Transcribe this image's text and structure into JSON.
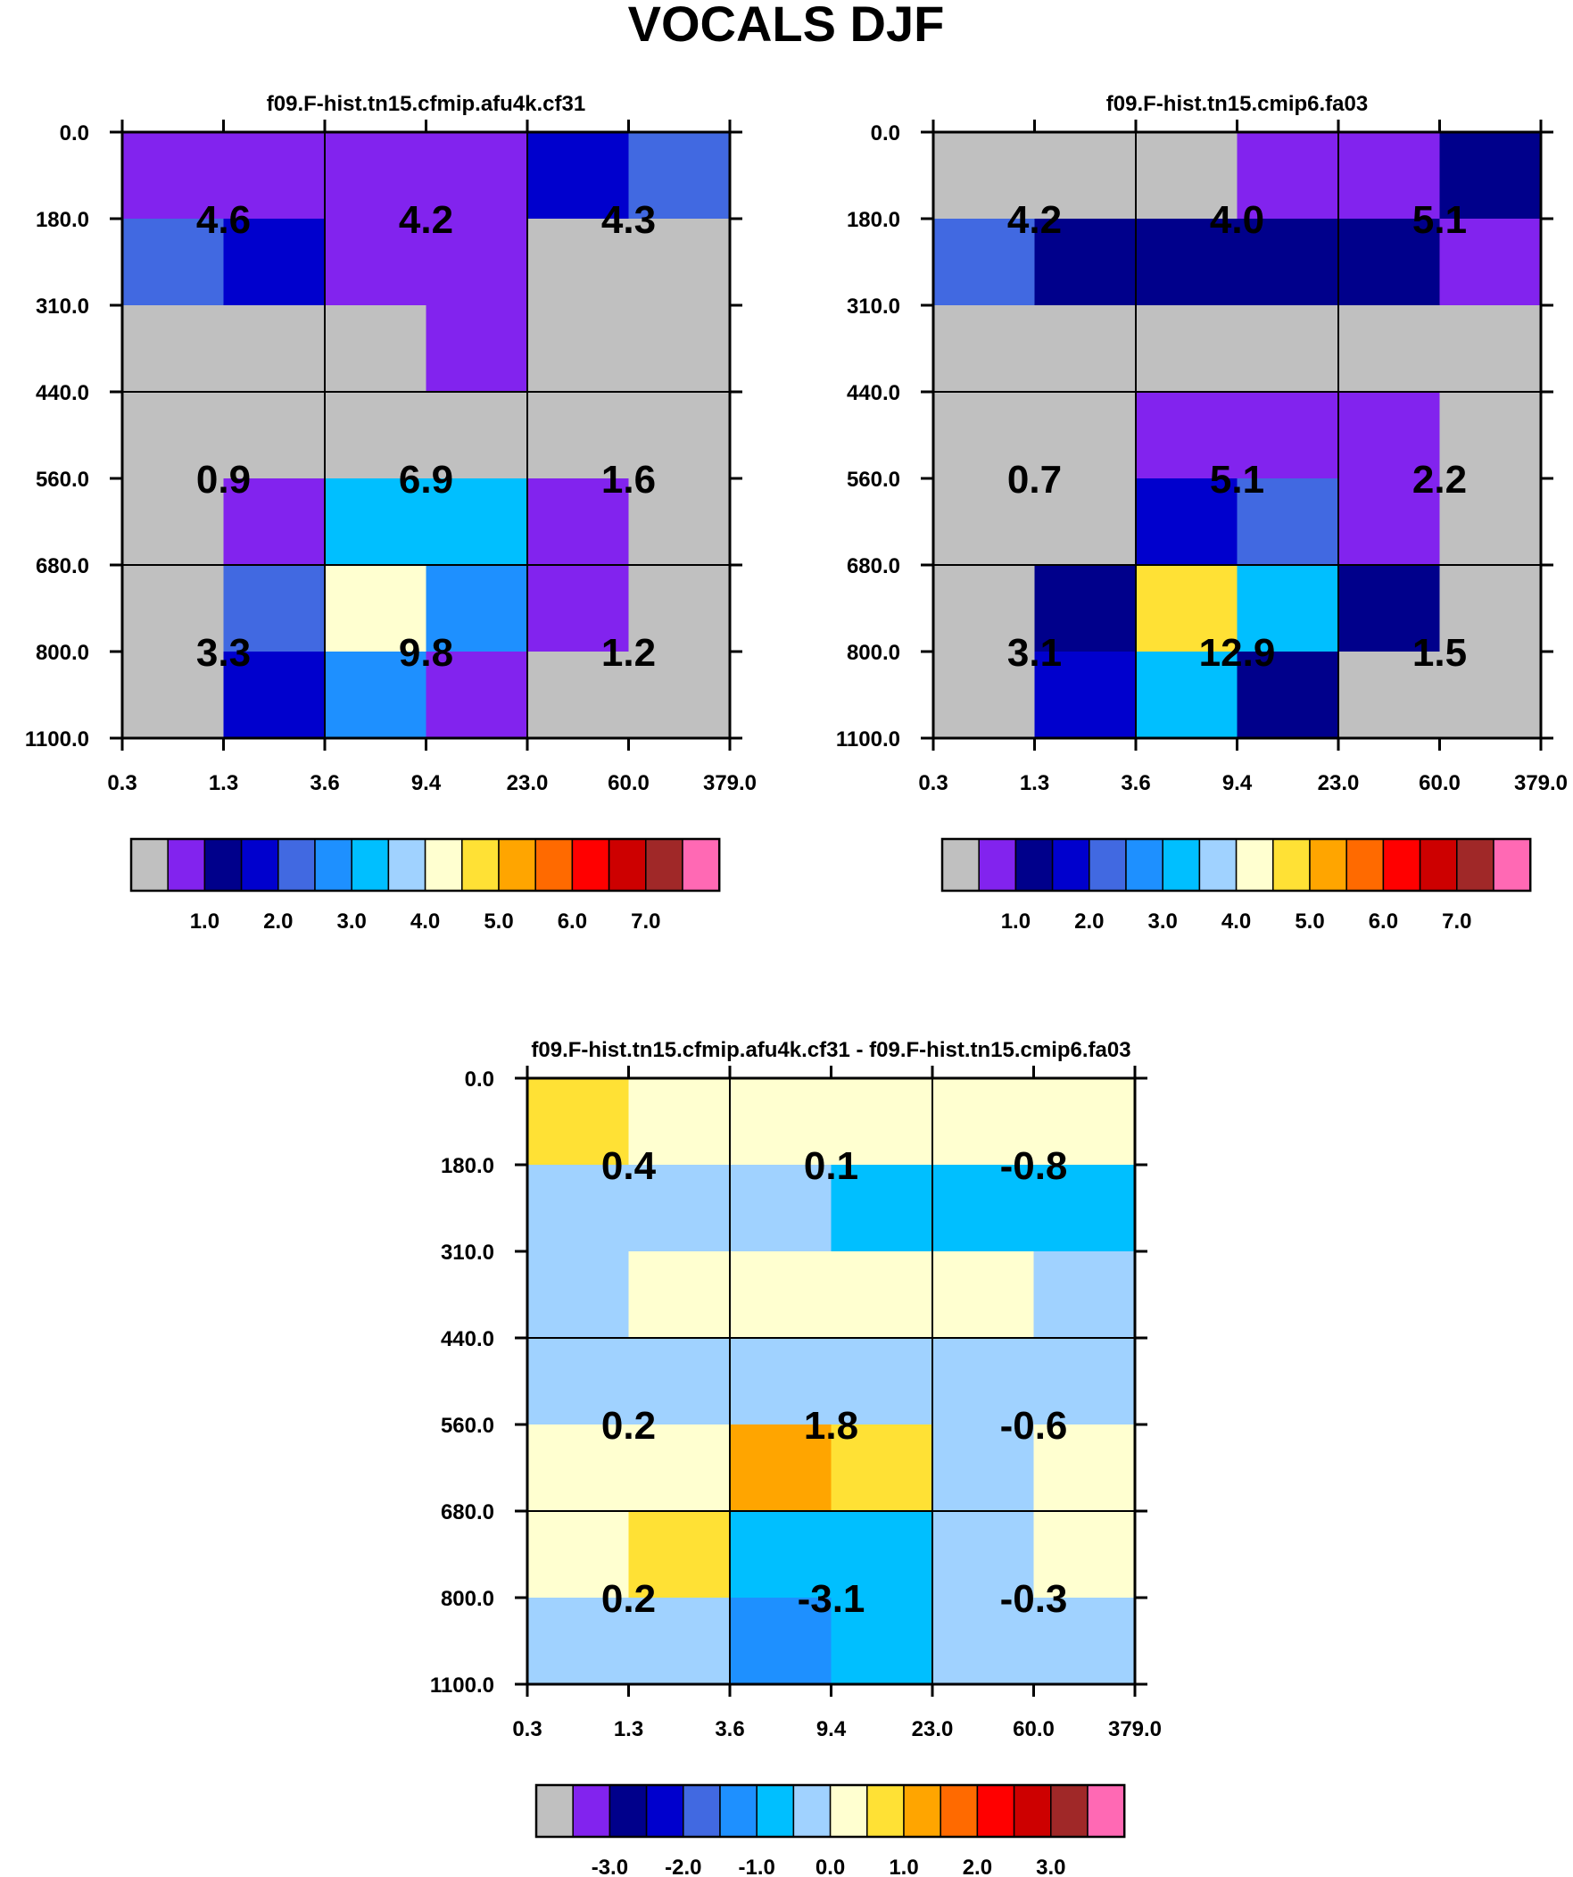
{
  "figure": {
    "title": "VOCALS DJF"
  },
  "chart_data": [
    {
      "id": "p1",
      "type": "heatmap",
      "title": "f09.F-hist.tn15.cfmip.afu4k.cf31",
      "x_ticks": [
        "0.3",
        "1.3",
        "3.6",
        "9.4",
        "23.0",
        "60.0",
        "379.0"
      ],
      "y_ticks": [
        "0.0",
        "180.0",
        "310.0",
        "440.0",
        "560.0",
        "680.0",
        "800.0",
        "1100.0"
      ],
      "cells": [
        [
          1,
          1,
          1,
          1,
          3,
          4
        ],
        [
          4,
          3,
          1,
          1,
          0,
          0
        ],
        [
          0,
          0,
          0,
          1,
          0,
          0
        ],
        [
          0,
          0,
          0,
          0,
          0,
          0
        ],
        [
          0,
          1,
          6,
          6,
          1,
          0
        ],
        [
          0,
          4,
          8,
          5,
          1,
          0
        ],
        [
          0,
          3,
          5,
          1,
          0,
          0
        ]
      ],
      "labels": [
        {
          "text": "4.6",
          "row": 1,
          "col": 1
        },
        {
          "text": "4.2",
          "row": 1,
          "col": 3
        },
        {
          "text": "4.3",
          "row": 1,
          "col": 5
        },
        {
          "text": "0.9",
          "row": 4,
          "col": 1
        },
        {
          "text": "6.9",
          "row": 4,
          "col": 3
        },
        {
          "text": "1.6",
          "row": 4,
          "col": 5
        },
        {
          "text": "3.3",
          "row": 6,
          "col": 1
        },
        {
          "text": "9.8",
          "row": 6,
          "col": 3
        },
        {
          "text": "1.2",
          "row": 6,
          "col": 5
        }
      ],
      "colorbar": {
        "colors": [
          "#c0c0c0",
          "#8223ee",
          "#00008b",
          "#0000cd",
          "#4169e1",
          "#1e90ff",
          "#00bfff",
          "#a0d2ff",
          "#ffffd0",
          "#ffe135",
          "#ffa500",
          "#ff6a00",
          "#ff0000",
          "#cd0000",
          "#a02828",
          "#ff69b4"
        ],
        "tick_labels": [
          {
            "after": 2,
            "text": "1.0"
          },
          {
            "after": 4,
            "text": "2.0"
          },
          {
            "after": 6,
            "text": "3.0"
          },
          {
            "after": 8,
            "text": "4.0"
          },
          {
            "after": 10,
            "text": "5.0"
          },
          {
            "after": 12,
            "text": "6.0"
          },
          {
            "after": 14,
            "text": "7.0"
          }
        ]
      }
    },
    {
      "id": "p2",
      "type": "heatmap",
      "title": "f09.F-hist.tn15.cmip6.fa03",
      "x_ticks": [
        "0.3",
        "1.3",
        "3.6",
        "9.4",
        "23.0",
        "60.0",
        "379.0"
      ],
      "y_ticks": [
        "0.0",
        "180.0",
        "310.0",
        "440.0",
        "560.0",
        "680.0",
        "800.0",
        "1100.0"
      ],
      "cells": [
        [
          0,
          0,
          0,
          1,
          1,
          2
        ],
        [
          4,
          2,
          2,
          2,
          2,
          1
        ],
        [
          0,
          0,
          0,
          0,
          0,
          0
        ],
        [
          0,
          0,
          1,
          1,
          1,
          0
        ],
        [
          0,
          0,
          3,
          4,
          1,
          0
        ],
        [
          0,
          2,
          9,
          6,
          2,
          0
        ],
        [
          0,
          3,
          6,
          2,
          0,
          0
        ]
      ],
      "labels": [
        {
          "text": "4.2",
          "row": 1,
          "col": 1
        },
        {
          "text": "4.0",
          "row": 1,
          "col": 3
        },
        {
          "text": "5.1",
          "row": 1,
          "col": 5
        },
        {
          "text": "0.7",
          "row": 4,
          "col": 1
        },
        {
          "text": "5.1",
          "row": 4,
          "col": 3
        },
        {
          "text": "2.2",
          "row": 4,
          "col": 5
        },
        {
          "text": "3.1",
          "row": 6,
          "col": 1
        },
        {
          "text": "12.9",
          "row": 6,
          "col": 3
        },
        {
          "text": "1.5",
          "row": 6,
          "col": 5
        }
      ],
      "colorbar": {
        "colors": [
          "#c0c0c0",
          "#8223ee",
          "#00008b",
          "#0000cd",
          "#4169e1",
          "#1e90ff",
          "#00bfff",
          "#a0d2ff",
          "#ffffd0",
          "#ffe135",
          "#ffa500",
          "#ff6a00",
          "#ff0000",
          "#cd0000",
          "#a02828",
          "#ff69b4"
        ],
        "tick_labels": [
          {
            "after": 2,
            "text": "1.0"
          },
          {
            "after": 4,
            "text": "2.0"
          },
          {
            "after": 6,
            "text": "3.0"
          },
          {
            "after": 8,
            "text": "4.0"
          },
          {
            "after": 10,
            "text": "5.0"
          },
          {
            "after": 12,
            "text": "6.0"
          },
          {
            "after": 14,
            "text": "7.0"
          }
        ]
      }
    },
    {
      "id": "p3",
      "type": "heatmap",
      "title": "f09.F-hist.tn15.cfmip.afu4k.cf31 - f09.F-hist.tn15.cmip6.fa03",
      "x_ticks": [
        "0.3",
        "1.3",
        "3.6",
        "9.4",
        "23.0",
        "60.0",
        "379.0"
      ],
      "y_ticks": [
        "0.0",
        "180.0",
        "310.0",
        "440.0",
        "560.0",
        "680.0",
        "800.0",
        "1100.0"
      ],
      "cells": [
        [
          9,
          8,
          8,
          8,
          8,
          8
        ],
        [
          7,
          7,
          7,
          6,
          6,
          6
        ],
        [
          7,
          8,
          8,
          8,
          8,
          7
        ],
        [
          7,
          7,
          7,
          7,
          7,
          7
        ],
        [
          8,
          8,
          10,
          9,
          7,
          8
        ],
        [
          8,
          9,
          6,
          6,
          7,
          8
        ],
        [
          7,
          7,
          5,
          6,
          7,
          7
        ]
      ],
      "labels": [
        {
          "text": "0.4",
          "row": 1,
          "col": 1
        },
        {
          "text": "0.1",
          "row": 1,
          "col": 3
        },
        {
          "text": "-0.8",
          "row": 1,
          "col": 5
        },
        {
          "text": "0.2",
          "row": 4,
          "col": 1
        },
        {
          "text": "1.8",
          "row": 4,
          "col": 3
        },
        {
          "text": "-0.6",
          "row": 4,
          "col": 5
        },
        {
          "text": "0.2",
          "row": 6,
          "col": 1
        },
        {
          "text": "-3.1",
          "row": 6,
          "col": 3
        },
        {
          "text": "-0.3",
          "row": 6,
          "col": 5
        }
      ],
      "colorbar": {
        "colors": [
          "#c0c0c0",
          "#8223ee",
          "#00008b",
          "#0000cd",
          "#4169e1",
          "#1e90ff",
          "#00bfff",
          "#a0d2ff",
          "#ffffd0",
          "#ffe135",
          "#ffa500",
          "#ff6a00",
          "#ff0000",
          "#cd0000",
          "#a02828",
          "#ff69b4"
        ],
        "tick_labels": [
          {
            "after": 2,
            "text": "-3.0"
          },
          {
            "after": 4,
            "text": "-2.0"
          },
          {
            "after": 6,
            "text": "-1.0"
          },
          {
            "after": 8,
            "text": "0.0"
          },
          {
            "after": 10,
            "text": "1.0"
          },
          {
            "after": 12,
            "text": "2.0"
          },
          {
            "after": 14,
            "text": "3.0"
          }
        ]
      }
    }
  ]
}
